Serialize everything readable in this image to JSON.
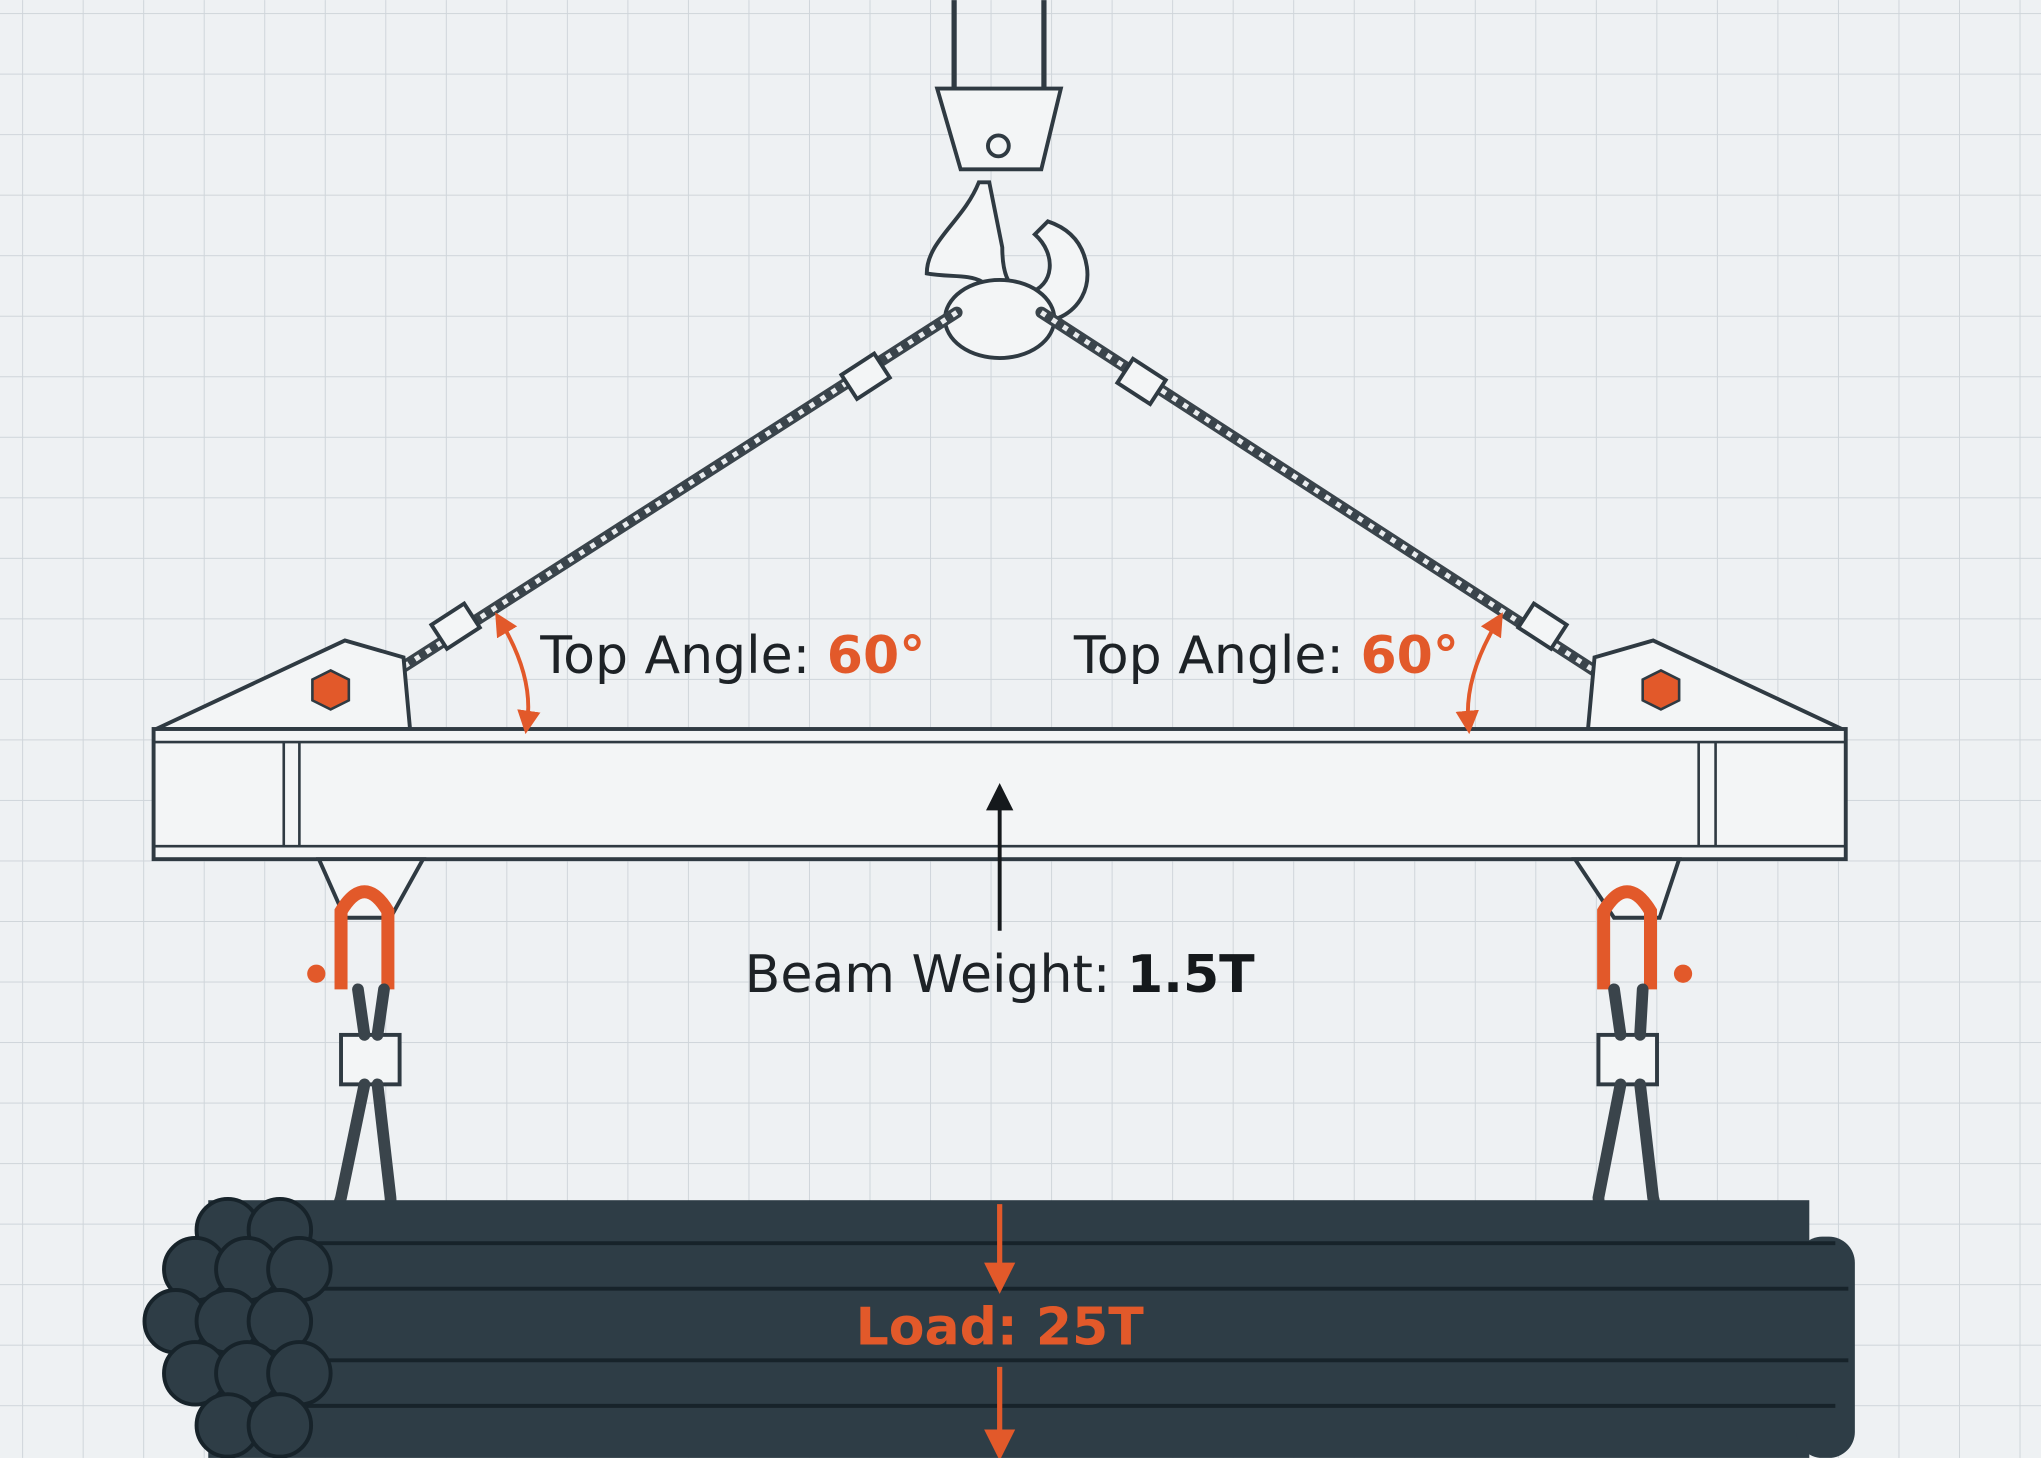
{
  "angles": [
    {
      "label": "Top Angle:",
      "value": "60°"
    },
    {
      "label": "Top Angle:",
      "value": "60°"
    }
  ],
  "beam_weight": {
    "label": "Beam Weight:",
    "value": "1.5T"
  },
  "load": {
    "label": "Load:",
    "value": "25T"
  }
}
